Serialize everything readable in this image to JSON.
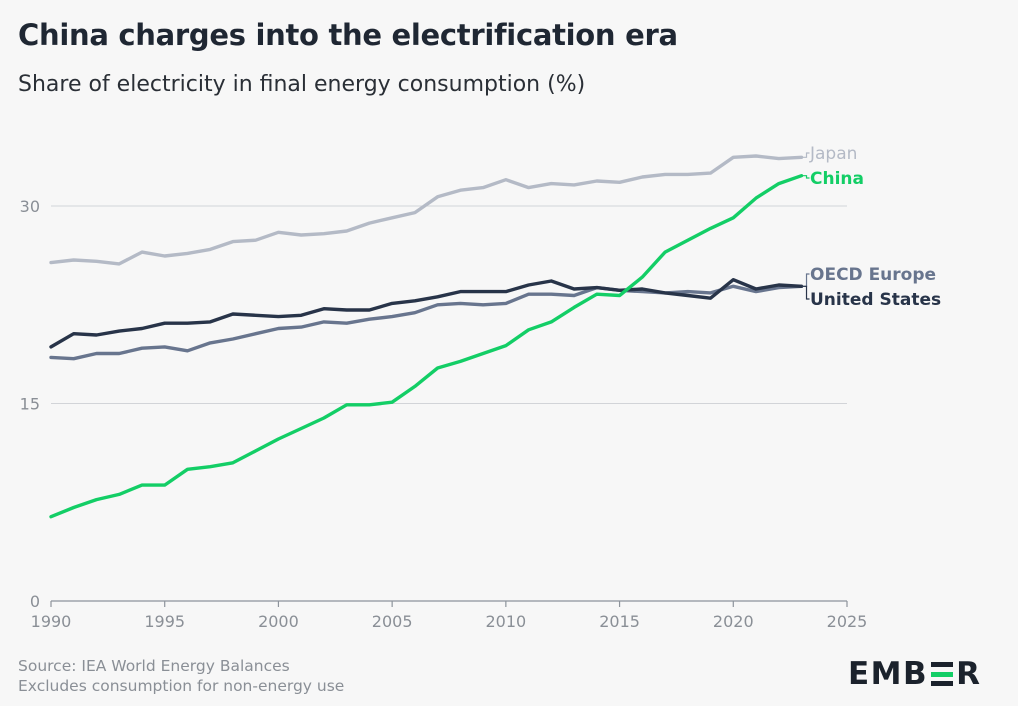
{
  "header": {
    "title": "China charges into the electrification era",
    "subtitle": "Share of electricity in final energy consumption (%)"
  },
  "footer": {
    "source": "Source: IEA World Energy Balances",
    "note": "Excludes consumption for non-energy use"
  },
  "brand": {
    "logo_text": "EMBER",
    "logo_parts": [
      "EMB",
      "R"
    ]
  },
  "chart_data": {
    "type": "line",
    "title": "China charges into the electrification era",
    "subtitle": "Share of electricity in final energy consumption (%)",
    "xlim": [
      1990,
      2025
    ],
    "ylim": [
      0,
      30
    ],
    "x_ticks": [
      1990,
      1995,
      2000,
      2005,
      2010,
      2015,
      2020,
      2025
    ],
    "y_ticks": [
      0,
      15,
      30
    ],
    "grid": "horizontal",
    "legend": "direct-labels-right",
    "x": [
      1990,
      1991,
      1992,
      1993,
      1994,
      1995,
      1996,
      1997,
      1998,
      1999,
      2000,
      2001,
      2002,
      2003,
      2004,
      2005,
      2006,
      2007,
      2008,
      2009,
      2010,
      2011,
      2012,
      2013,
      2014,
      2015,
      2016,
      2017,
      2018,
      2019,
      2020,
      2021,
      2022,
      2023
    ],
    "series": [
      {
        "name": "Japan",
        "color": "#b4bac6",
        "values": [
          25.7,
          25.9,
          25.8,
          25.6,
          26.5,
          26.2,
          26.4,
          26.7,
          27.3,
          27.4,
          28.0,
          27.8,
          27.9,
          28.1,
          28.7,
          29.1,
          29.5,
          30.7,
          31.2,
          31.4,
          32.0,
          31.4,
          31.7,
          31.6,
          31.9,
          31.8,
          32.2,
          32.4,
          32.4,
          32.5,
          33.7,
          33.8,
          33.6,
          33.7
        ]
      },
      {
        "name": "China",
        "color": "#13ce66",
        "values": [
          6.4,
          7.1,
          7.7,
          8.1,
          8.8,
          8.8,
          10.0,
          10.2,
          10.5,
          11.4,
          12.3,
          13.1,
          13.9,
          14.9,
          14.9,
          15.1,
          16.3,
          17.7,
          18.2,
          18.8,
          19.4,
          20.6,
          21.2,
          22.3,
          23.3,
          23.2,
          24.6,
          26.5,
          27.4,
          28.3,
          29.1,
          30.6,
          31.7,
          32.3
        ]
      },
      {
        "name": "OECD Europe",
        "color": "#68758e",
        "values": [
          18.5,
          18.4,
          18.8,
          18.8,
          19.2,
          19.3,
          19.0,
          19.6,
          19.9,
          20.3,
          20.7,
          20.8,
          21.2,
          21.1,
          21.4,
          21.6,
          21.9,
          22.5,
          22.6,
          22.5,
          22.6,
          23.3,
          23.3,
          23.2,
          23.8,
          23.6,
          23.5,
          23.4,
          23.5,
          23.4,
          23.9,
          23.5,
          23.8,
          23.9
        ]
      },
      {
        "name": "United States",
        "color": "#283449",
        "values": [
          19.3,
          20.3,
          20.2,
          20.5,
          20.7,
          21.1,
          21.1,
          21.2,
          21.8,
          21.7,
          21.6,
          21.7,
          22.2,
          22.1,
          22.1,
          22.6,
          22.8,
          23.1,
          23.5,
          23.5,
          23.5,
          24.0,
          24.3,
          23.7,
          23.8,
          23.6,
          23.7,
          23.4,
          23.2,
          23.0,
          24.4,
          23.7,
          24.0,
          23.9
        ]
      }
    ]
  }
}
